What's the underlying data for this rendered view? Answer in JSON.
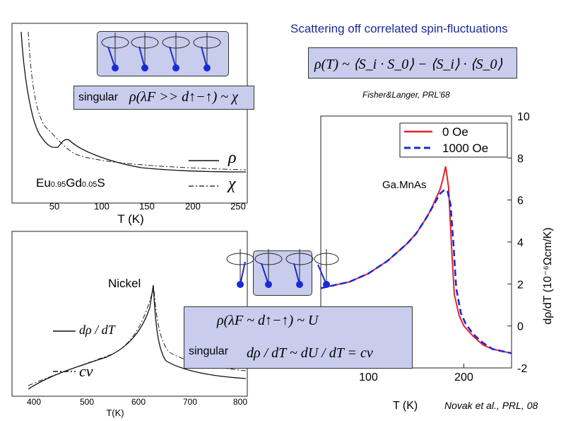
{
  "title": "Scattering off correlated spin-fluctuations",
  "formula_top": "ρ(T) ~ ⟨S_i · S_0⟩ − ⟨S_i⟩ · ⟨S_0⟩",
  "citation_top": "Fisher&Langer,  PRL'68",
  "citation_bottom": "Novak et al., PRL, 08",
  "panel_eu": {
    "material": "Eu0.95Gd0.05S",
    "material_main": "Eu",
    "sub1": "0.95",
    "material_mid": "Gd",
    "sub2": "0.05",
    "material_end": "S",
    "singular_label": "singular",
    "formula": "ρ(λF >> d↑−↑) ~ χ",
    "legend_rho": "ρ",
    "legend_chi": "χ",
    "xlabel": "T (K)",
    "xticks": [
      "50",
      "100",
      "150",
      "200",
      "250"
    ]
  },
  "panel_ni": {
    "material": "Nickel",
    "singular_label": "singular",
    "formula1": "ρ(λF ~ d↑−↑) ~ U",
    "formula2": "dρ / dT ~ dU / dT = cv",
    "legend_drho": "dρ / dT",
    "legend_cv": "cv",
    "xlabel": "T(K)",
    "xticks": [
      "400",
      "500",
      "600",
      "700",
      "800"
    ]
  },
  "chart_data": {
    "type": "line",
    "label": "Ga.MnAs",
    "xlabel": "T    (K)",
    "ylabel": "dρ/dT  (10⁻⁶Ωcm/K)",
    "xlim": [
      50,
      250
    ],
    "ylim": [
      -2,
      10
    ],
    "xticks": [
      "100",
      "200"
    ],
    "yticks": [
      "10",
      "8",
      "6",
      "4",
      "2",
      "0",
      "-2"
    ],
    "legend_position": "top-right",
    "series": [
      {
        "name": "0 Oe",
        "color": "#e8202a",
        "x": [
          50,
          60,
          70,
          80,
          90,
          100,
          110,
          120,
          130,
          140,
          150,
          160,
          165,
          170,
          175,
          178,
          181,
          184,
          187,
          190,
          195,
          200,
          210,
          220,
          230,
          240,
          250
        ],
        "y": [
          1.8,
          1.9,
          2.0,
          2.1,
          2.3,
          2.5,
          2.8,
          3.1,
          3.5,
          3.9,
          4.4,
          5.1,
          5.5,
          6.0,
          6.5,
          7.0,
          7.6,
          6.6,
          3.8,
          1.5,
          0.5,
          0.0,
          -0.5,
          -0.9,
          -1.1,
          -1.2,
          -1.3
        ]
      },
      {
        "name": "1000 Oe",
        "color": "#1a2ad6",
        "x": [
          50,
          60,
          70,
          80,
          90,
          100,
          110,
          120,
          130,
          140,
          150,
          160,
          165,
          170,
          175,
          180,
          183,
          186,
          189,
          192,
          197,
          202,
          210,
          220,
          230,
          240,
          250
        ],
        "y": [
          1.8,
          1.9,
          2.0,
          2.1,
          2.3,
          2.5,
          2.8,
          3.1,
          3.5,
          3.9,
          4.4,
          5.1,
          5.5,
          5.9,
          6.3,
          6.5,
          6.4,
          5.8,
          4.0,
          1.8,
          0.6,
          0.1,
          -0.4,
          -0.8,
          -1.1,
          -1.2,
          -1.3
        ]
      }
    ]
  }
}
